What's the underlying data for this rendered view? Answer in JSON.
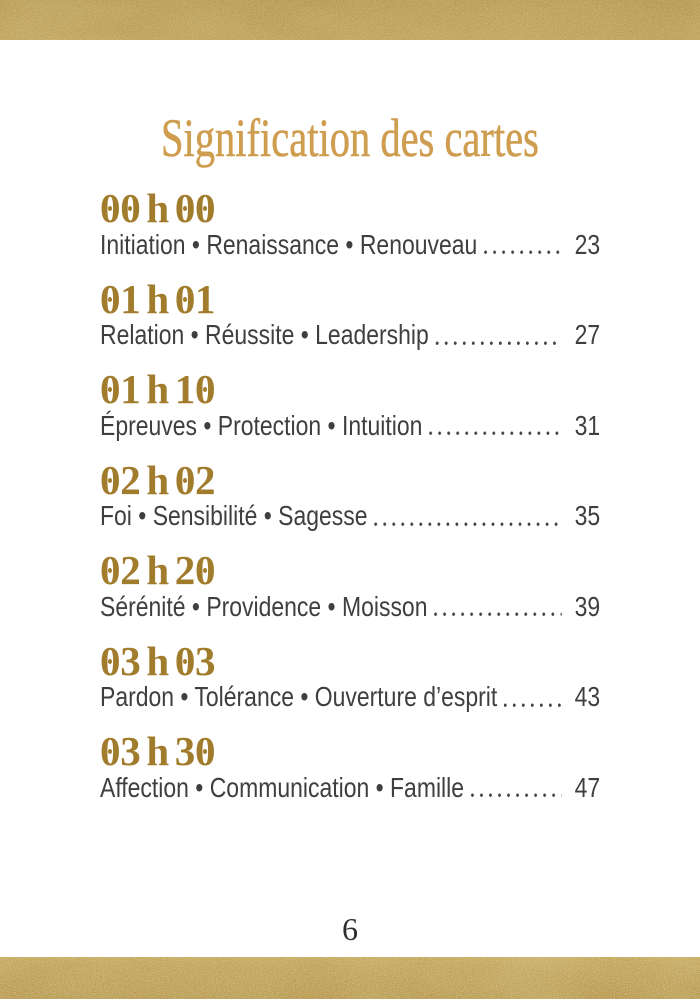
{
  "page": {
    "title": "Signification des cartes",
    "page_number": "6",
    "colors": {
      "gold_bar": "#b5923f",
      "title_gold": "#cf9d4f",
      "heading_gold": "#a27c2d",
      "body_text": "#3f3f3f"
    }
  },
  "toc": {
    "entries": [
      {
        "time": "00 h 00",
        "keywords": "Initiation • Renaissance • Renouveau",
        "page": "23"
      },
      {
        "time": "01 h 01",
        "keywords": "Relation • Réussite • Leadership",
        "page": "27"
      },
      {
        "time": "01 h 10",
        "keywords": "Épreuves • Protection • Intuition",
        "page": "31"
      },
      {
        "time": "02 h 02",
        "keywords": "Foi • Sensibilité • Sagesse",
        "page": "35"
      },
      {
        "time": "02 h 20",
        "keywords": "Sérénité • Providence • Moisson",
        "page": "39"
      },
      {
        "time": "03 h 03",
        "keywords": "Pardon • Tolérance • Ouverture d’esprit",
        "page": "43"
      },
      {
        "time": "03 h 30",
        "keywords": "Affection • Communication • Famille",
        "page": "47"
      }
    ]
  }
}
